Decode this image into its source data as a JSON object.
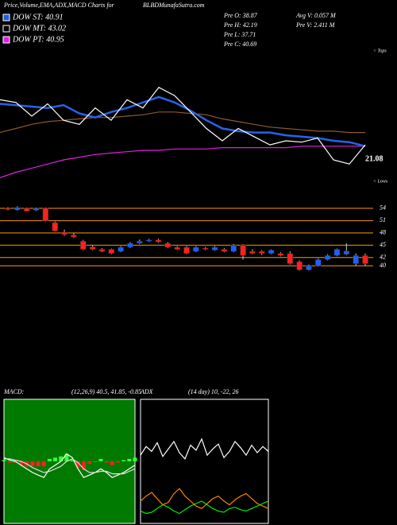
{
  "header": {
    "title": "Price,Volume,EMA,ADX,MACD Charts for",
    "symbol": "BLBD",
    "site": "MunafaSutra.com"
  },
  "legend": [
    {
      "label": "DOW ST: 40.91",
      "color": "#1e5fe0"
    },
    {
      "label": "DOW MT: 43.02",
      "color": "#000000"
    },
    {
      "label": "DOW PT: 40.95",
      "color": "#e020e0"
    }
  ],
  "stats": [
    "Pre O: 38.87",
    "Pre H: 42.19",
    "Pre L: 37.71",
    "Pre C: 40.69",
    "Avg V: 0.057 M",
    "Pre V: 2.411 M"
  ],
  "chart_data": [
    {
      "type": "line",
      "top_label": "< Tops",
      "bottom_label": "< Lows",
      "last_value_label": "21.08",
      "ylim": [
        0,
        100
      ],
      "series": [
        {
          "color": "#8b5a2b",
          "values": [
            38,
            41,
            44,
            46,
            47,
            48,
            49,
            49,
            50,
            51,
            53,
            53,
            52,
            51,
            48,
            46,
            44,
            42,
            41,
            40,
            39,
            39,
            38,
            38
          ]
        },
        {
          "color": "#e020e0",
          "values": [
            5,
            9,
            12,
            15,
            18,
            20,
            22,
            23,
            24,
            25,
            25,
            26,
            26,
            26,
            27,
            27,
            27,
            27,
            27,
            28,
            28,
            28,
            28,
            28
          ]
        },
        {
          "color": "#2a62e8",
          "values": [
            59,
            58,
            57,
            56,
            58,
            52,
            49,
            53,
            56,
            60,
            64,
            60,
            54,
            47,
            41,
            39,
            38,
            38,
            36,
            35,
            34,
            32,
            31,
            28
          ]
        },
        {
          "color": "#ffffff",
          "values": [
            62,
            60,
            50,
            59,
            47,
            44,
            56,
            47,
            62,
            56,
            71,
            65,
            53,
            41,
            32,
            41,
            35,
            29,
            32,
            31,
            34,
            18,
            15,
            29
          ]
        }
      ]
    },
    {
      "type": "candlestick",
      "ylim": [
        37.5,
        56.3
      ],
      "yticks": [
        40,
        42,
        45,
        48,
        51,
        54
      ],
      "grid": true,
      "grid_color": "#ff9900",
      "up_color": "#2060ff",
      "down_color": "#ff2020",
      "open": [
        54,
        53.6,
        54,
        53.5,
        54,
        50.5,
        48.2,
        47.5,
        46,
        44.6,
        44,
        44,
        43.5,
        44.5,
        45.5,
        46,
        46.3,
        45.5,
        44.5,
        44.5,
        43.5,
        44.3,
        43.8,
        44,
        43.5,
        45,
        43.5,
        43.5,
        43,
        43,
        43,
        41,
        39,
        40,
        41.5,
        42.5,
        42.8,
        40.5,
        42.5
      ],
      "high": [
        54.3,
        54.5,
        54.2,
        54.2,
        54.2,
        50.8,
        48.8,
        48,
        46.3,
        45,
        44.3,
        44.2,
        44.8,
        45.8,
        46.4,
        46.6,
        46.6,
        45.8,
        44.8,
        44.8,
        44.8,
        44.6,
        44.8,
        44.3,
        45.3,
        45.2,
        44,
        43.8,
        44,
        43.3,
        43.5,
        41.3,
        40.3,
        41.8,
        42.8,
        44.2,
        45.5,
        43,
        43
      ],
      "low": [
        53.5,
        53.4,
        53.2,
        53.3,
        50.8,
        48.3,
        47.3,
        46.8,
        43.8,
        43.8,
        43.3,
        42.8,
        43.3,
        44.3,
        45.3,
        45.8,
        45.6,
        44.3,
        43.8,
        42.8,
        43.3,
        43.8,
        43.6,
        43.3,
        43.3,
        41.5,
        42.8,
        42.6,
        42.8,
        42.3,
        40.3,
        38.8,
        38.8,
        39.8,
        41.3,
        42.3,
        42.6,
        40,
        40
      ],
      "close": [
        53.7,
        54.2,
        53.3,
        54,
        51,
        48.5,
        47.6,
        47,
        44,
        44,
        43.5,
        43,
        44.5,
        45.5,
        46,
        46.3,
        45.8,
        44.5,
        44,
        43,
        44.5,
        44,
        44.5,
        43.5,
        45,
        42.5,
        43,
        43,
        43.8,
        42.5,
        40.5,
        39,
        40,
        41.5,
        42.5,
        44,
        43.6,
        42.5,
        40.5
      ]
    },
    {
      "type": "macd",
      "title": "MACD:",
      "subtitle": "(12,26,9) 40.5, 41.85, -0.85",
      "background": "#007a00",
      "ylim": [
        -5,
        5
      ],
      "histogram": {
        "up_color": "#33ff33",
        "down_color": "#ff2020",
        "values": [
          0.1,
          -0.1,
          -0.1,
          -0.3,
          -0.4,
          -0.4,
          -0.4,
          -0.4,
          0.2,
          0.3,
          0.4,
          0.6,
          0.1,
          -0.5,
          -0.7,
          -0.2,
          0,
          0.2,
          -0.1,
          -0.3,
          -0.1,
          0.1,
          0.2,
          0.3
        ]
      },
      "series": [
        {
          "color": "#ffffff",
          "values": [
            0.3,
            0.1,
            0,
            -0.3,
            -0.6,
            -0.9,
            -1.1,
            -1.3,
            -0.6,
            -0.3,
            0,
            0.6,
            0.3,
            -0.6,
            -1.3,
            -1.1,
            -0.9,
            -0.6,
            -0.9,
            -1.3,
            -1.1,
            -0.9,
            -0.6,
            -0.3
          ]
        },
        {
          "color": "#dddddd",
          "values": [
            0.2,
            0.2,
            0.1,
            0,
            -0.2,
            -0.5,
            -0.7,
            -0.9,
            -0.8,
            -0.6,
            -0.4,
            0,
            0.2,
            -0.1,
            -0.6,
            -0.9,
            -0.9,
            -0.8,
            -0.8,
            -1,
            -1,
            -1,
            -0.8,
            -0.6
          ]
        }
      ]
    },
    {
      "type": "line",
      "title": "ADX",
      "subtitle": "(14 day) 10, -22, 26",
      "background": "#000000",
      "ylim": [
        0,
        100
      ],
      "series": [
        {
          "color": "#ffffff",
          "values": [
            55,
            62,
            58,
            65,
            54,
            60,
            66,
            57,
            52,
            63,
            59,
            68,
            55,
            60,
            64,
            53,
            58,
            66,
            61,
            55,
            63,
            57,
            62,
            58
          ]
        },
        {
          "color": "#ff8000",
          "values": [
            18,
            22,
            25,
            20,
            15,
            17,
            24,
            28,
            22,
            18,
            14,
            12,
            16,
            20,
            22,
            18,
            15,
            19,
            22,
            24,
            20,
            16,
            14,
            12
          ]
        },
        {
          "color": "#00ee00",
          "values": [
            10,
            8,
            9,
            12,
            15,
            13,
            10,
            8,
            11,
            14,
            16,
            18,
            15,
            12,
            10,
            9,
            12,
            13,
            11,
            10,
            12,
            14,
            16,
            18
          ]
        }
      ]
    }
  ]
}
